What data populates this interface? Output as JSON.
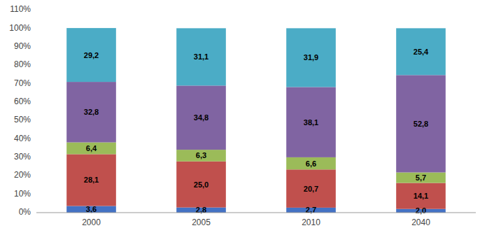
{
  "chart_data": {
    "type": "bar",
    "stacked": true,
    "data_labels": true,
    "grid": false,
    "categories": [
      "2000",
      "2005",
      "2010",
      "2040"
    ],
    "series": [
      {
        "color": "#4472C4",
        "values": [
          3.6,
          2.8,
          2.7,
          2.0
        ],
        "value_labels": [
          "3,6",
          "2,8",
          "2,7",
          "2,0"
        ]
      },
      {
        "color": "#C0504D",
        "values": [
          28.1,
          25.0,
          20.7,
          14.1
        ],
        "value_labels": [
          "28,1",
          "25,0",
          "20,7",
          "14,1"
        ]
      },
      {
        "color": "#9BBB59",
        "values": [
          6.4,
          6.3,
          6.6,
          5.7
        ],
        "value_labels": [
          "6,4",
          "6,3",
          "6,6",
          "5,7"
        ]
      },
      {
        "color": "#8064A2",
        "values": [
          32.8,
          34.8,
          38.1,
          52.8
        ],
        "value_labels": [
          "32,8",
          "34,8",
          "38,1",
          "52,8"
        ]
      },
      {
        "color": "#4BACC6",
        "values": [
          29.2,
          31.1,
          31.9,
          25.4
        ],
        "value_labels": [
          "29,2",
          "31,1",
          "31,9",
          "25,4"
        ]
      }
    ],
    "ylim": [
      0,
      110
    ],
    "yticks": [
      {
        "value": 0,
        "label": "0%"
      },
      {
        "value": 10,
        "label": "10%"
      },
      {
        "value": 20,
        "label": "20%"
      },
      {
        "value": 30,
        "label": "30%"
      },
      {
        "value": 40,
        "label": "40%"
      },
      {
        "value": 50,
        "label": "50%"
      },
      {
        "value": 60,
        "label": "60%"
      },
      {
        "value": 70,
        "label": "70%"
      },
      {
        "value": 80,
        "label": "80%"
      },
      {
        "value": 90,
        "label": "90%"
      },
      {
        "value": 100,
        "label": "100%"
      },
      {
        "value": 110,
        "label": "110%"
      }
    ]
  }
}
